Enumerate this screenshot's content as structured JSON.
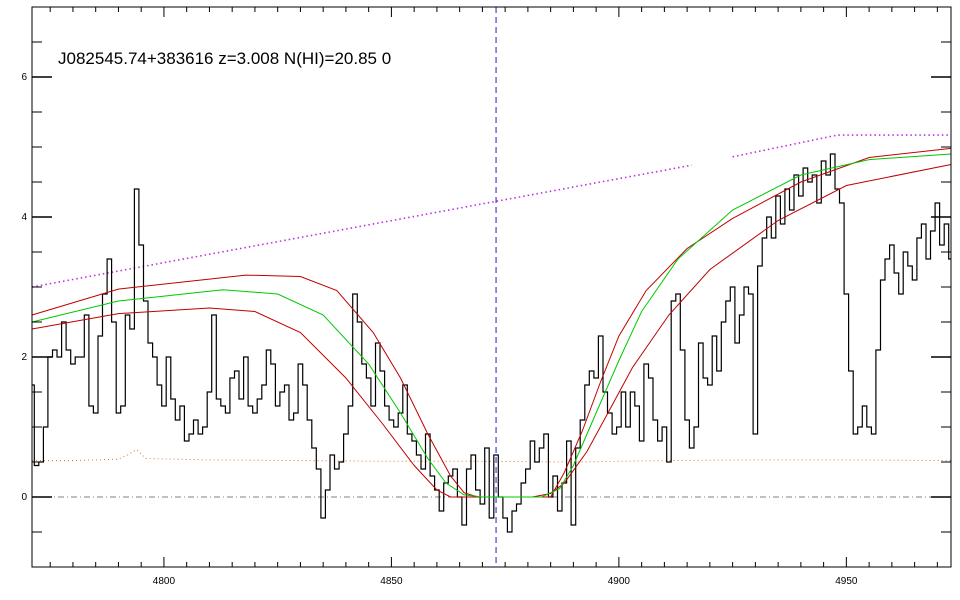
{
  "chart_data": {
    "type": "line",
    "title": "J082545.74+383616 z=3.008 N(HI)=20.85 0",
    "xlabel": "",
    "ylabel": "",
    "xlim": [
      4771,
      4973
    ],
    "ylim": [
      -1.0,
      7.0
    ],
    "x_ticks": [
      4800,
      4850,
      4900,
      4950
    ],
    "y_ticks": [
      0,
      2,
      4,
      6
    ],
    "zero_line": 0,
    "center_line_x": 4873,
    "colors": {
      "flux": "#000000",
      "error": "#e87040",
      "continuum": "#c030e0",
      "model": "#00c800",
      "model_bounds": "#c00000",
      "center_line": "#2020c0",
      "zero_line": "#808080"
    },
    "series": [
      {
        "role": "flux",
        "draw": "step",
        "points": [
          [
            4771.0,
            1.6
          ],
          [
            4772.0,
            0.45
          ],
          [
            4773.0,
            0.5
          ],
          [
            4774.0,
            1.0
          ],
          [
            4775.0,
            2.0
          ],
          [
            4776.0,
            2.1
          ],
          [
            4777.0,
            2.0
          ],
          [
            4778.0,
            2.5
          ],
          [
            4779.0,
            2.1
          ],
          [
            4780.0,
            1.9
          ],
          [
            4781.0,
            2.0
          ],
          [
            4782.0,
            2.0
          ],
          [
            4783.0,
            2.6
          ],
          [
            4784.0,
            1.3
          ],
          [
            4785.0,
            1.2
          ],
          [
            4786.0,
            2.3
          ],
          [
            4787.0,
            2.9
          ],
          [
            4788.0,
            3.4
          ],
          [
            4789.0,
            2.5
          ],
          [
            4790.0,
            1.2
          ],
          [
            4791.0,
            1.3
          ],
          [
            4792.0,
            2.6
          ],
          [
            4793.0,
            2.4
          ],
          [
            4794.0,
            4.4
          ],
          [
            4795.0,
            3.6
          ],
          [
            4796.0,
            2.8
          ],
          [
            4797.0,
            2.2
          ],
          [
            4798.0,
            2.0
          ],
          [
            4799.0,
            1.6
          ],
          [
            4800.0,
            1.3
          ],
          [
            4801.0,
            2.0
          ],
          [
            4802.0,
            1.4
          ],
          [
            4803.0,
            1.1
          ],
          [
            4804.0,
            1.3
          ],
          [
            4805.0,
            0.8
          ],
          [
            4806.0,
            0.9
          ],
          [
            4807.0,
            1.1
          ],
          [
            4808.0,
            0.9
          ],
          [
            4809.0,
            1.0
          ],
          [
            4810.0,
            1.5
          ],
          [
            4811.0,
            2.6
          ],
          [
            4812.0,
            1.4
          ],
          [
            4813.0,
            1.3
          ],
          [
            4814.0,
            1.2
          ],
          [
            4815.0,
            1.7
          ],
          [
            4816.0,
            1.8
          ],
          [
            4817.0,
            1.4
          ],
          [
            4818.0,
            2.0
          ],
          [
            4819.0,
            1.3
          ],
          [
            4820.0,
            1.2
          ],
          [
            4821.0,
            1.4
          ],
          [
            4822.0,
            1.6
          ],
          [
            4823.0,
            2.1
          ],
          [
            4824.0,
            1.9
          ],
          [
            4825.0,
            1.3
          ],
          [
            4826.0,
            1.5
          ],
          [
            4827.0,
            1.6
          ],
          [
            4828.0,
            1.1
          ],
          [
            4829.0,
            1.2
          ],
          [
            4830.0,
            1.9
          ],
          [
            4831.0,
            1.6
          ],
          [
            4832.0,
            1.1
          ],
          [
            4833.0,
            0.7
          ],
          [
            4834.0,
            0.4
          ],
          [
            4835.0,
            -0.3
          ],
          [
            4836.0,
            0.1
          ],
          [
            4837.0,
            0.6
          ],
          [
            4838.0,
            0.4
          ],
          [
            4839.0,
            0.5
          ],
          [
            4840.0,
            0.9
          ],
          [
            4841.0,
            1.3
          ],
          [
            4842.0,
            2.9
          ],
          [
            4843.0,
            2.5
          ],
          [
            4844.0,
            1.9
          ],
          [
            4845.0,
            1.7
          ],
          [
            4846.0,
            1.3
          ],
          [
            4847.0,
            2.2
          ],
          [
            4848.0,
            1.8
          ],
          [
            4849.0,
            1.3
          ],
          [
            4850.0,
            1.1
          ],
          [
            4851.0,
            1.0
          ],
          [
            4852.0,
            1.2
          ],
          [
            4853.0,
            1.6
          ],
          [
            4854.0,
            0.9
          ],
          [
            4855.0,
            0.8
          ],
          [
            4856.0,
            0.6
          ],
          [
            4857.0,
            0.4
          ],
          [
            4858.0,
            0.9
          ],
          [
            4859.0,
            0.3
          ],
          [
            4860.0,
            0.1
          ],
          [
            4861.0,
            -0.2
          ],
          [
            4862.0,
            0.2
          ],
          [
            4863.0,
            0.3
          ],
          [
            4864.0,
            0.4
          ],
          [
            4865.0,
            0.0
          ],
          [
            4866.0,
            -0.4
          ],
          [
            4867.0,
            0.4
          ],
          [
            4868.0,
            0.6
          ],
          [
            4869.0,
            0.1
          ],
          [
            4870.0,
            -0.1
          ],
          [
            4871.0,
            0.7
          ],
          [
            4872.0,
            -0.3
          ],
          [
            4873.0,
            0.6
          ],
          [
            4874.0,
            0.0
          ],
          [
            4875.0,
            -0.3
          ],
          [
            4876.0,
            -0.5
          ],
          [
            4877.0,
            -0.2
          ],
          [
            4878.0,
            -0.1
          ],
          [
            4879.0,
            0.2
          ],
          [
            4880.0,
            0.4
          ],
          [
            4881.0,
            0.8
          ],
          [
            4882.0,
            0.5
          ],
          [
            4883.0,
            0.7
          ],
          [
            4884.0,
            0.9
          ],
          [
            4885.0,
            0.0
          ],
          [
            4886.0,
            0.3
          ],
          [
            4887.0,
            -0.2
          ],
          [
            4888.0,
            0.2
          ],
          [
            4889.0,
            0.8
          ],
          [
            4890.0,
            -0.4
          ],
          [
            4891.0,
            0.7
          ],
          [
            4892.0,
            1.1
          ],
          [
            4893.0,
            1.6
          ],
          [
            4894.0,
            1.8
          ],
          [
            4895.0,
            1.7
          ],
          [
            4896.0,
            2.3
          ],
          [
            4897.0,
            1.5
          ],
          [
            4898.0,
            1.2
          ],
          [
            4899.0,
            0.9
          ],
          [
            4900.0,
            1.0
          ],
          [
            4901.0,
            1.5
          ],
          [
            4902.0,
            1.0
          ],
          [
            4903.0,
            1.5
          ],
          [
            4904.0,
            1.3
          ],
          [
            4905.0,
            0.8
          ],
          [
            4906.0,
            1.9
          ],
          [
            4907.0,
            1.7
          ],
          [
            4908.0,
            1.1
          ],
          [
            4909.0,
            0.8
          ],
          [
            4910.0,
            1.0
          ],
          [
            4911.0,
            0.5
          ],
          [
            4912.0,
            2.8
          ],
          [
            4913.0,
            2.9
          ],
          [
            4914.0,
            2.1
          ],
          [
            4915.0,
            1.1
          ],
          [
            4916.0,
            0.7
          ],
          [
            4917.0,
            1.0
          ],
          [
            4918.0,
            2.2
          ],
          [
            4919.0,
            1.7
          ],
          [
            4920.0,
            1.6
          ],
          [
            4921.0,
            2.3
          ],
          [
            4922.0,
            1.8
          ],
          [
            4923.0,
            2.5
          ],
          [
            4924.0,
            2.8
          ],
          [
            4925.0,
            3.0
          ],
          [
            4926.0,
            2.2
          ],
          [
            4927.0,
            2.6
          ],
          [
            4928.0,
            3.0
          ],
          [
            4929.0,
            2.9
          ],
          [
            4930.0,
            0.9
          ],
          [
            4931.0,
            3.3
          ],
          [
            4932.0,
            3.7
          ],
          [
            4933.0,
            4.0
          ],
          [
            4934.0,
            3.7
          ],
          [
            4935.0,
            4.3
          ],
          [
            4936.0,
            3.9
          ],
          [
            4937.0,
            4.4
          ],
          [
            4938.0,
            4.1
          ],
          [
            4939.0,
            4.6
          ],
          [
            4940.0,
            4.3
          ],
          [
            4941.0,
            4.7
          ],
          [
            4942.0,
            4.5
          ],
          [
            4943.0,
            4.6
          ],
          [
            4944.0,
            4.2
          ],
          [
            4945.0,
            4.8
          ],
          [
            4946.0,
            4.6
          ],
          [
            4947.0,
            4.9
          ],
          [
            4948.0,
            4.4
          ],
          [
            4949.0,
            4.2
          ],
          [
            4950.0,
            2.9
          ],
          [
            4951.0,
            1.8
          ],
          [
            4952.0,
            0.9
          ],
          [
            4953.0,
            1.0
          ],
          [
            4954.0,
            1.3
          ],
          [
            4955.0,
            1.0
          ],
          [
            4956.0,
            0.9
          ],
          [
            4957.0,
            2.1
          ],
          [
            4958.0,
            3.1
          ],
          [
            4959.0,
            3.4
          ],
          [
            4960.0,
            3.6
          ],
          [
            4961.0,
            3.2
          ],
          [
            4962.0,
            2.9
          ],
          [
            4963.0,
            3.5
          ],
          [
            4964.0,
            3.3
          ],
          [
            4965.0,
            3.1
          ],
          [
            4966.0,
            3.7
          ],
          [
            4967.0,
            3.9
          ],
          [
            4968.0,
            3.4
          ],
          [
            4969.0,
            3.8
          ],
          [
            4970.0,
            4.2
          ],
          [
            4971.0,
            3.6
          ],
          [
            4972.0,
            3.9
          ],
          [
            4973.0,
            3.4
          ]
        ]
      },
      {
        "role": "error",
        "draw": "dotted",
        "points": [
          [
            4771,
            0.52
          ],
          [
            4780,
            0.52
          ],
          [
            4790,
            0.54
          ],
          [
            4792,
            0.6
          ],
          [
            4794,
            0.68
          ],
          [
            4796,
            0.55
          ],
          [
            4810,
            0.53
          ],
          [
            4830,
            0.52
          ],
          [
            4850,
            0.51
          ],
          [
            4870,
            0.51
          ],
          [
            4890,
            0.5
          ],
          [
            4910,
            0.52
          ],
          [
            4930,
            0.53
          ],
          [
            4950,
            0.53
          ],
          [
            4973,
            0.52
          ]
        ]
      },
      {
        "role": "continuum",
        "draw": "dotted",
        "points": [
          [
            4771,
            3.0
          ],
          [
            4916,
            4.74
          ],
          null,
          [
            4925,
            4.86
          ],
          [
            4948,
            5.17
          ],
          [
            4973,
            5.17
          ]
        ]
      },
      {
        "role": "model",
        "draw": "line",
        "points": [
          [
            4771,
            2.5
          ],
          [
            4790,
            2.8
          ],
          [
            4813,
            2.96
          ],
          [
            4825,
            2.9
          ],
          [
            4835,
            2.6
          ],
          [
            4845,
            1.9
          ],
          [
            4852,
            1.2
          ],
          [
            4858,
            0.55
          ],
          [
            4862,
            0.2
          ],
          [
            4866,
            0.03
          ],
          [
            4870,
            0.0
          ],
          [
            4883,
            0.0
          ],
          [
            4887,
            0.12
          ],
          [
            4890,
            0.45
          ],
          [
            4895,
            1.2
          ],
          [
            4900,
            1.95
          ],
          [
            4905,
            2.65
          ],
          [
            4913,
            3.4
          ],
          [
            4925,
            4.1
          ],
          [
            4940,
            4.6
          ],
          [
            4955,
            4.82
          ],
          [
            4973,
            4.9
          ]
        ]
      },
      {
        "role": "model_upper",
        "draw": "line",
        "points": [
          [
            4771,
            2.6
          ],
          [
            4790,
            2.97
          ],
          [
            4818,
            3.17
          ],
          [
            4830,
            3.15
          ],
          [
            4838,
            2.95
          ],
          [
            4846,
            2.35
          ],
          [
            4852,
            1.7
          ],
          [
            4858,
            0.9
          ],
          [
            4863,
            0.3
          ],
          [
            4866,
            0.06
          ],
          [
            4869,
            0.0
          ],
          [
            4885,
            0.0
          ],
          [
            4888,
            0.35
          ],
          [
            4892,
            0.95
          ],
          [
            4896,
            1.65
          ],
          [
            4900,
            2.3
          ],
          [
            4906,
            2.95
          ],
          [
            4915,
            3.55
          ],
          [
            4925,
            3.98
          ],
          [
            4940,
            4.5
          ],
          [
            4955,
            4.85
          ],
          [
            4973,
            4.98
          ]
        ]
      },
      {
        "role": "model_lower",
        "draw": "line",
        "points": [
          [
            4771,
            2.4
          ],
          [
            4790,
            2.62
          ],
          [
            4810,
            2.7
          ],
          [
            4820,
            2.65
          ],
          [
            4830,
            2.35
          ],
          [
            4840,
            1.7
          ],
          [
            4848,
            1.05
          ],
          [
            4855,
            0.45
          ],
          [
            4860,
            0.1
          ],
          [
            4863,
            0.0
          ],
          [
            4881,
            0.0
          ],
          [
            4885,
            0.05
          ],
          [
            4888,
            0.2
          ],
          [
            4893,
            0.65
          ],
          [
            4898,
            1.25
          ],
          [
            4903,
            1.85
          ],
          [
            4911,
            2.6
          ],
          [
            4920,
            3.25
          ],
          [
            4935,
            3.95
          ],
          [
            4950,
            4.45
          ],
          [
            4973,
            4.75
          ]
        ]
      }
    ]
  }
}
